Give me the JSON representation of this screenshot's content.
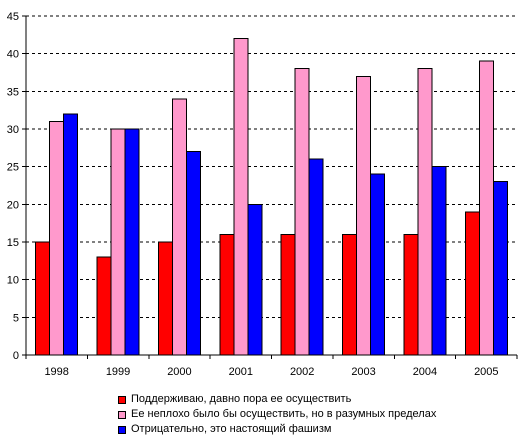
{
  "chart_data": {
    "type": "bar",
    "title": "",
    "xlabel": "",
    "ylabel": "",
    "categories": [
      "1998",
      "1999",
      "2000",
      "2001",
      "2002",
      "2003",
      "2004",
      "2005"
    ],
    "ylim": [
      0,
      45
    ],
    "yticks": [
      0,
      5,
      10,
      15,
      20,
      25,
      30,
      35,
      40,
      45
    ],
    "grid": true,
    "legend_position": "bottom",
    "series": [
      {
        "name": "Поддерживаю, давно пора ее осуществить",
        "color": "#ff0000",
        "values": [
          15,
          13,
          15,
          16,
          16,
          16,
          16,
          19
        ]
      },
      {
        "name": "Ее неплохо было бы осуществить, но в разумных пределах",
        "color": "#ff99cc",
        "values": [
          31,
          30,
          34,
          42,
          38,
          37,
          38,
          39
        ]
      },
      {
        "name": "Отрицательно, это настоящий фашизм",
        "color": "#0000ff",
        "values": [
          32,
          30,
          27,
          20,
          26,
          24,
          25,
          23
        ]
      }
    ]
  }
}
